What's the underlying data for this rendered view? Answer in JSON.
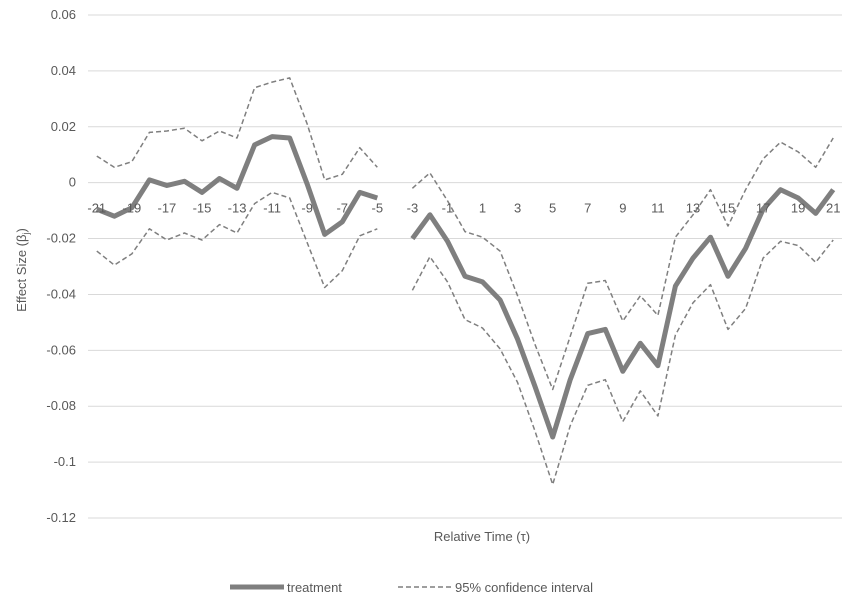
{
  "chart_data": {
    "type": "line",
    "title": "",
    "xlabel": "Relative Time (τ)",
    "ylabel_main": "Effect Size (β",
    "ylabel_sub": "j",
    "ylabel_end": ")",
    "ylim": [
      -0.12,
      0.06
    ],
    "yticks": [
      0.06,
      0.04,
      0.02,
      0,
      -0.02,
      -0.04,
      -0.06,
      -0.08,
      -0.1,
      -0.12
    ],
    "ytick_labels": [
      "0.06",
      "0.04",
      "0.02",
      "0",
      "-0.02",
      "-0.04",
      "-0.06",
      "-0.08",
      "-0.1",
      "-0.12"
    ],
    "x": [
      -21,
      -20,
      -19,
      -18,
      -17,
      -16,
      -15,
      -14,
      -13,
      -12,
      -11,
      -10,
      -9,
      -8,
      -7,
      -6,
      -5,
      -4,
      -3,
      -2,
      -1,
      0,
      1,
      2,
      3,
      4,
      5,
      6,
      7,
      8,
      9,
      10,
      11,
      12,
      13,
      14,
      15,
      16,
      17,
      18,
      19,
      20,
      21
    ],
    "xtick_labels": [
      "-21",
      "-19",
      "-17",
      "-15",
      "-13",
      "-11",
      "-9",
      "-7",
      "-5",
      "-3",
      "-1",
      "1",
      "3",
      "5",
      "7",
      "9",
      "11",
      "13",
      "15",
      "17",
      "19",
      "21"
    ],
    "grid": true,
    "legend_position": "bottom",
    "series": [
      {
        "name": "treatment",
        "style": "solid",
        "color": "#7f7f7f",
        "values": [
          -0.0095,
          -0.012,
          -0.009,
          0.001,
          -0.001,
          0.0005,
          -0.0035,
          0.0015,
          -0.002,
          0.0135,
          0.0165,
          0.016,
          -0.0005,
          -0.0185,
          -0.014,
          -0.0035,
          -0.0055,
          null,
          -0.02,
          -0.0115,
          -0.021,
          -0.0335,
          -0.0355,
          -0.042,
          -0.056,
          -0.073,
          -0.091,
          -0.0705,
          -0.054,
          -0.0525,
          -0.0675,
          -0.0575,
          -0.0655,
          -0.037,
          -0.027,
          -0.0195,
          -0.0335,
          -0.0235,
          -0.0095,
          -0.0025,
          -0.0055,
          -0.011,
          -0.0025
        ]
      },
      {
        "name": "95% confidence interval",
        "style": "dashed",
        "color": "#7f7f7f",
        "values": [
          0.0095,
          0.0055,
          0.0075,
          0.018,
          0.0185,
          0.0195,
          0.015,
          0.0185,
          0.016,
          0.034,
          0.036,
          0.0375,
          0.021,
          0.001,
          0.003,
          0.0125,
          0.0055,
          null,
          -0.002,
          0.0035,
          -0.0065,
          -0.0175,
          -0.0195,
          -0.0245,
          -0.0405,
          -0.058,
          -0.074,
          -0.055,
          -0.036,
          -0.035,
          -0.0495,
          -0.0405,
          -0.0475,
          -0.0195,
          -0.0115,
          -0.0025,
          -0.0155,
          -0.0025,
          0.0085,
          0.0145,
          0.011,
          0.0055,
          0.016
        ]
      },
      {
        "name": "95% confidence interval",
        "style": "dashed",
        "color": "#7f7f7f",
        "values": [
          -0.0245,
          -0.0295,
          -0.0255,
          -0.0165,
          -0.0205,
          -0.018,
          -0.0205,
          -0.015,
          -0.018,
          -0.0075,
          -0.0035,
          -0.0055,
          -0.0215,
          -0.0375,
          -0.0315,
          -0.019,
          -0.0165,
          null,
          -0.0385,
          -0.0265,
          -0.0355,
          -0.049,
          -0.052,
          -0.0595,
          -0.0715,
          -0.089,
          -0.108,
          -0.087,
          -0.0725,
          -0.0705,
          -0.0855,
          -0.0745,
          -0.0835,
          -0.0545,
          -0.043,
          -0.0365,
          -0.0525,
          -0.045,
          -0.027,
          -0.021,
          -0.0225,
          -0.0285,
          -0.0205
        ]
      }
    ],
    "legend": [
      {
        "label": "treatment",
        "style": "solid"
      },
      {
        "label": "95% confidence interval",
        "style": "dashed"
      }
    ]
  }
}
